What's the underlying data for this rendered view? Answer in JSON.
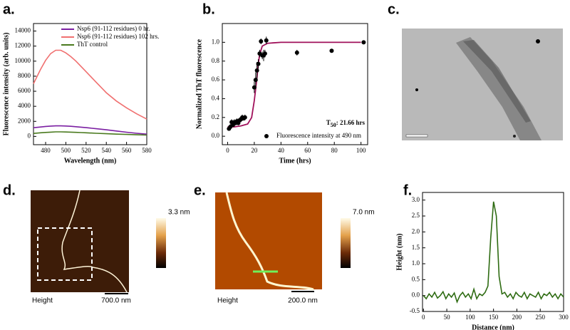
{
  "panel_labels": [
    "a.",
    "b.",
    "c.",
    "d.",
    "e.",
    "f."
  ],
  "chart_data": [
    {
      "type": "line",
      "xlabel": "Wavelength (nm)",
      "ylabel": "Fluorescence intensity (arb. units)",
      "x": [
        468,
        475,
        480,
        485,
        490,
        495,
        500,
        505,
        510,
        515,
        520,
        530,
        540,
        550,
        560,
        570,
        580
      ],
      "series": [
        {
          "name": "Nsp6 (91-112 residues) 0 hr.",
          "color": "#7b1fa2",
          "values": [
            1150,
            1250,
            1320,
            1370,
            1400,
            1400,
            1380,
            1340,
            1290,
            1230,
            1160,
            1020,
            880,
            720,
            560,
            420,
            300
          ]
        },
        {
          "name": "Nsp6 (91-112 residues) 102 hrs.",
          "color": "#f07070",
          "values": [
            7000,
            8900,
            10100,
            11000,
            11450,
            11450,
            11100,
            10600,
            10000,
            9300,
            8600,
            7200,
            5800,
            4700,
            3800,
            3000,
            2300
          ]
        },
        {
          "name": "ThT control",
          "color": "#4a7a1e",
          "values": [
            400,
            480,
            530,
            570,
            600,
            600,
            590,
            570,
            540,
            510,
            480,
            420,
            360,
            300,
            260,
            220,
            180
          ]
        }
      ],
      "xlim": [
        468,
        580
      ],
      "ylim": [
        -1100,
        15000
      ],
      "xticks": [
        480,
        500,
        520,
        540,
        560,
        580
      ],
      "yticks": [
        0,
        2000,
        4000,
        6000,
        8000,
        10000,
        12000,
        14000
      ],
      "legend": "upper right"
    },
    {
      "type": "scatter",
      "xlabel": "Time (hrs)",
      "ylabel": "Normalized ThT fluorescence",
      "x": [
        1,
        2,
        3,
        4,
        5,
        6,
        7,
        8,
        9,
        10,
        11,
        12,
        13,
        20,
        21,
        22,
        23,
        24,
        25,
        26,
        27,
        28,
        29,
        52,
        78,
        102
      ],
      "series": [
        {
          "name": "Fluorescence intensity at 490 nm",
          "color": "#000000",
          "values": [
            0.08,
            0.1,
            0.15,
            0.12,
            0.15,
            0.14,
            0.16,
            0.14,
            0.17,
            0.18,
            0.2,
            0.19,
            0.2,
            0.52,
            0.6,
            0.7,
            0.77,
            0.88,
            1.01,
            0.86,
            0.86,
            0.88,
            1.02,
            0.89,
            0.91,
            1.0
          ],
          "errors": [
            0.02,
            0.03,
            0.03,
            0.02,
            0.03,
            0.02,
            0.03,
            0.02,
            0.03,
            0.03,
            0.03,
            0.02,
            0.03,
            0.06,
            0.08,
            0.09,
            0.05,
            0.04,
            0.03,
            0.04,
            0.06,
            0.04,
            0.04,
            0.03,
            0.02,
            0.01
          ]
        }
      ],
      "fit": {
        "color": "#a0105a",
        "x": [
          0,
          5,
          10,
          15,
          18,
          20,
          21,
          22,
          23,
          24,
          26,
          30,
          40,
          100
        ],
        "values": [
          0.1,
          0.1,
          0.11,
          0.13,
          0.2,
          0.38,
          0.5,
          0.63,
          0.77,
          0.87,
          0.96,
          0.99,
          1.0,
          1.0
        ]
      },
      "annotation": {
        "main": "T",
        "sub": "50",
        "rest": ": 21.66 hrs"
      },
      "xlim": [
        -4,
        105
      ],
      "ylim": [
        -0.09,
        1.2
      ],
      "xticks": [
        0,
        20,
        40,
        60,
        80,
        100
      ],
      "yticks": [
        {
          "value": 0,
          "label": "0.0"
        },
        0.2,
        0.4,
        0.6,
        0.8,
        {
          "value": 1,
          "label": "1.0"
        }
      ],
      "legend": "lower right"
    },
    {
      "type": "line",
      "xlabel": "Distance (nm)",
      "ylabel": "Height (nm)",
      "x": [
        0,
        6,
        12,
        18,
        24,
        30,
        36,
        42,
        48,
        54,
        60,
        66,
        72,
        78,
        84,
        90,
        96,
        102,
        108,
        114,
        120,
        126,
        132,
        138,
        144,
        150,
        156,
        162,
        168,
        174,
        180,
        186,
        192,
        198,
        204,
        210,
        216,
        222,
        228,
        234,
        240,
        246,
        252,
        258,
        264,
        270,
        276,
        282,
        288,
        294,
        300
      ],
      "series": [
        {
          "name": null,
          "color": "#2e6b12",
          "values": [
            0.0,
            -0.1,
            0.05,
            -0.05,
            0.1,
            -0.08,
            0.0,
            0.12,
            -0.1,
            0.05,
            -0.05,
            0.08,
            -0.2,
            0.0,
            0.1,
            -0.05,
            0.05,
            -0.1,
            0.2,
            -0.1,
            0.05,
            0.0,
            0.1,
            0.3,
            1.8,
            2.95,
            2.5,
            0.6,
            0.05,
            0.1,
            -0.05,
            0.05,
            -0.1,
            0.1,
            0.0,
            -0.05,
            0.1,
            -0.1,
            0.05,
            0.0,
            -0.05,
            0.1,
            -0.1,
            0.05,
            0.0,
            0.1,
            -0.05,
            0.05,
            -0.1,
            0.05,
            -0.05
          ]
        }
      ],
      "xlim": [
        -2,
        300
      ],
      "ylim": [
        -0.5,
        3.24
      ],
      "xticks": [
        0,
        50,
        100,
        150,
        200,
        250,
        300
      ],
      "yticks": [
        -0.5,
        {
          "value": 0,
          "label": "0.0"
        },
        0.5,
        {
          "value": 1,
          "label": "1.0"
        },
        1.5,
        {
          "value": 2,
          "label": "2.0"
        },
        2.5,
        {
          "value": 3,
          "label": "3.0"
        }
      ]
    }
  ],
  "images": {
    "d": {
      "colorbar": "3.3 nm",
      "caption": "Height",
      "scale": "700.0 nm"
    },
    "e": {
      "colorbar": "7.0 nm",
      "caption": "Height",
      "scale": "200.0 nm"
    }
  }
}
